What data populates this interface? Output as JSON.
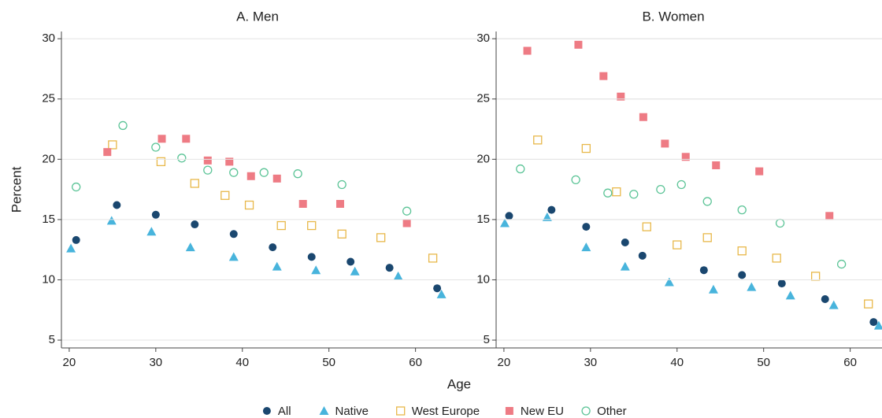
{
  "chart_data": [
    {
      "type": "scatter",
      "title": "A. Men",
      "xlabel": "Age",
      "ylabel": "Percent",
      "xlim": [
        19.1,
        64.4
      ],
      "xticks": [
        20,
        30,
        40,
        50,
        60
      ],
      "ylim": [
        4.35,
        30.6
      ],
      "yticks": [
        5,
        10,
        15,
        20,
        25,
        30
      ],
      "grid": true,
      "legend": "bottom",
      "series": [
        {
          "name": "All",
          "color": "#1a476f",
          "marker": "circle",
          "filled": true,
          "x": [
            20.8,
            25.5,
            30,
            34.5,
            39,
            43.5,
            48,
            52.5,
            57,
            62.5
          ],
          "values": [
            13.3,
            16.2,
            15.4,
            14.6,
            13.8,
            12.7,
            11.9,
            11.5,
            11.0,
            9.3
          ]
        },
        {
          "name": "Native",
          "color": "#48b4dc",
          "marker": "triangle",
          "filled": true,
          "x": [
            20.2,
            24.9,
            29.5,
            34,
            39,
            44,
            48.5,
            53,
            58,
            63
          ],
          "values": [
            12.6,
            14.9,
            14.0,
            12.7,
            11.9,
            11.1,
            10.8,
            10.7,
            10.3,
            8.8
          ]
        },
        {
          "name": "West Europe",
          "color": "#e8b84a",
          "marker": "square",
          "filled": false,
          "x": [
            25,
            30.6,
            34.5,
            38,
            40.8,
            44.5,
            48,
            51.5,
            56,
            62
          ],
          "values": [
            21.2,
            19.8,
            18.0,
            17.0,
            16.2,
            14.5,
            14.5,
            13.8,
            13.5,
            11.8
          ]
        },
        {
          "name": "New EU",
          "color": "#ee7b84",
          "marker": "square",
          "filled": true,
          "x": [
            24.4,
            30.7,
            33.5,
            36,
            38.5,
            41,
            44,
            47,
            51.3,
            59
          ],
          "values": [
            20.6,
            21.7,
            21.7,
            19.9,
            19.8,
            18.6,
            18.4,
            16.3,
            16.3,
            14.7
          ]
        },
        {
          "name": "Other",
          "color": "#5cc497",
          "marker": "circle",
          "filled": false,
          "x": [
            20.8,
            26.2,
            30,
            33,
            36,
            39,
            42.5,
            46.4,
            51.5,
            59
          ],
          "values": [
            17.7,
            22.8,
            21.0,
            20.1,
            19.1,
            18.9,
            18.9,
            18.8,
            17.9,
            15.7
          ]
        }
      ]
    },
    {
      "type": "scatter",
      "title": "B. Women",
      "xlim": [
        19.1,
        64.4
      ],
      "xticks": [
        20,
        30,
        40,
        50,
        60
      ],
      "ylim": [
        4.35,
        30.6
      ],
      "yticks": [
        5,
        10,
        15,
        20,
        25,
        30
      ],
      "grid": true,
      "series": [
        {
          "name": "All",
          "color": "#1a476f",
          "marker": "circle",
          "filled": true,
          "x": [
            20.6,
            25.5,
            29.5,
            34,
            36,
            43.1,
            47.5,
            52.1,
            57.1,
            62.7
          ],
          "values": [
            15.3,
            15.8,
            14.4,
            13.1,
            12.0,
            10.8,
            10.4,
            9.7,
            8.4,
            6.5
          ]
        },
        {
          "name": "Native",
          "color": "#48b4dc",
          "marker": "triangle",
          "filled": true,
          "x": [
            20.1,
            25,
            29.5,
            34,
            39.1,
            44.2,
            48.6,
            53.1,
            58.1,
            63.3
          ],
          "values": [
            14.7,
            15.2,
            12.7,
            11.1,
            9.8,
            9.2,
            9.4,
            8.7,
            7.9,
            6.2
          ]
        },
        {
          "name": "West Europe",
          "color": "#e8b84a",
          "marker": "square",
          "filled": false,
          "x": [
            23.9,
            29.5,
            33,
            36.5,
            40,
            43.5,
            47.5,
            51.5,
            56,
            62.1
          ],
          "values": [
            21.6,
            20.9,
            17.3,
            14.4,
            12.9,
            13.5,
            12.4,
            11.8,
            10.3,
            8.0
          ]
        },
        {
          "name": "New EU",
          "color": "#ee7b84",
          "marker": "square",
          "filled": true,
          "x": [
            22.7,
            28.6,
            31.5,
            33.5,
            36.1,
            38.6,
            41,
            44.5,
            49.5,
            57.6
          ],
          "values": [
            29.0,
            29.5,
            26.9,
            25.2,
            23.5,
            21.3,
            20.2,
            19.5,
            19.0,
            15.3
          ]
        },
        {
          "name": "Other",
          "color": "#5cc497",
          "marker": "circle",
          "filled": false,
          "x": [
            21.9,
            28.3,
            32,
            35,
            38.1,
            40.5,
            43.5,
            47.5,
            51.9,
            59
          ],
          "values": [
            19.2,
            18.3,
            17.2,
            17.1,
            17.5,
            17.9,
            16.5,
            15.8,
            14.7,
            11.3
          ]
        }
      ]
    }
  ]
}
